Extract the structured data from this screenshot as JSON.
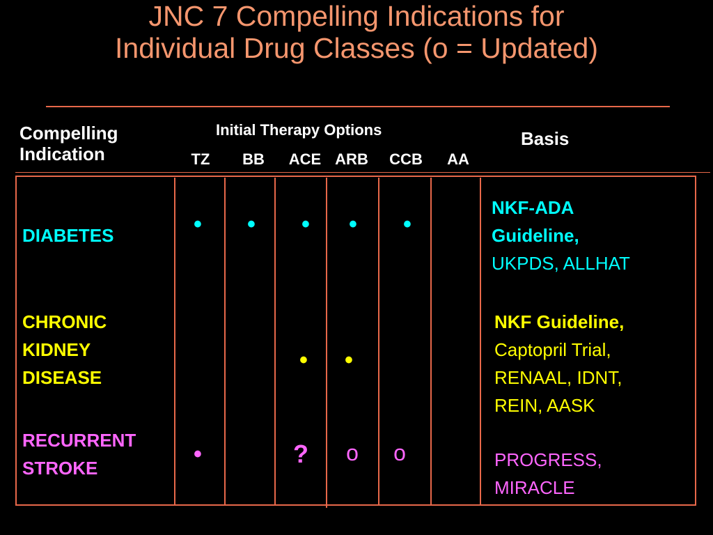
{
  "title_line1": "JNC 7 Compelling Indications for",
  "title_line2": "Individual Drug Classes (o = Updated)",
  "header": {
    "indication_line1": "Compelling",
    "indication_line2": "Indication",
    "therapy": "Initial Therapy Options",
    "basis": "Basis",
    "drug_classes": [
      "TZ",
      "BB",
      "ACE",
      "ARB",
      "CCB",
      "AA"
    ]
  },
  "rows": [
    {
      "label_lines": [
        "DIABETES"
      ],
      "color": "#00ffff",
      "marks": [
        "•",
        "•",
        "•",
        "•",
        "•",
        ""
      ],
      "basis_bold": [
        "NKF-ADA",
        "Guideline,"
      ],
      "basis_plain": [
        "UKPDS, ALLHAT"
      ]
    },
    {
      "label_lines": [
        "CHRONIC",
        "KIDNEY",
        "DISEASE"
      ],
      "color": "#ffff00",
      "marks": [
        "",
        "",
        "•",
        "•",
        "",
        ""
      ],
      "basis_bold": [
        "NKF Guideline,"
      ],
      "basis_plain": [
        "Captopril Trial,",
        "RENAAL, IDNT,",
        "REIN, AASK"
      ]
    },
    {
      "label_lines": [
        "RECURRENT",
        "STROKE"
      ],
      "color": "#ff66ff",
      "marks": [
        "•",
        "",
        "?",
        "o",
        "o",
        ""
      ],
      "basis_bold": [],
      "basis_plain": [
        "PROGRESS,",
        "MIRACLE"
      ]
    }
  ]
}
